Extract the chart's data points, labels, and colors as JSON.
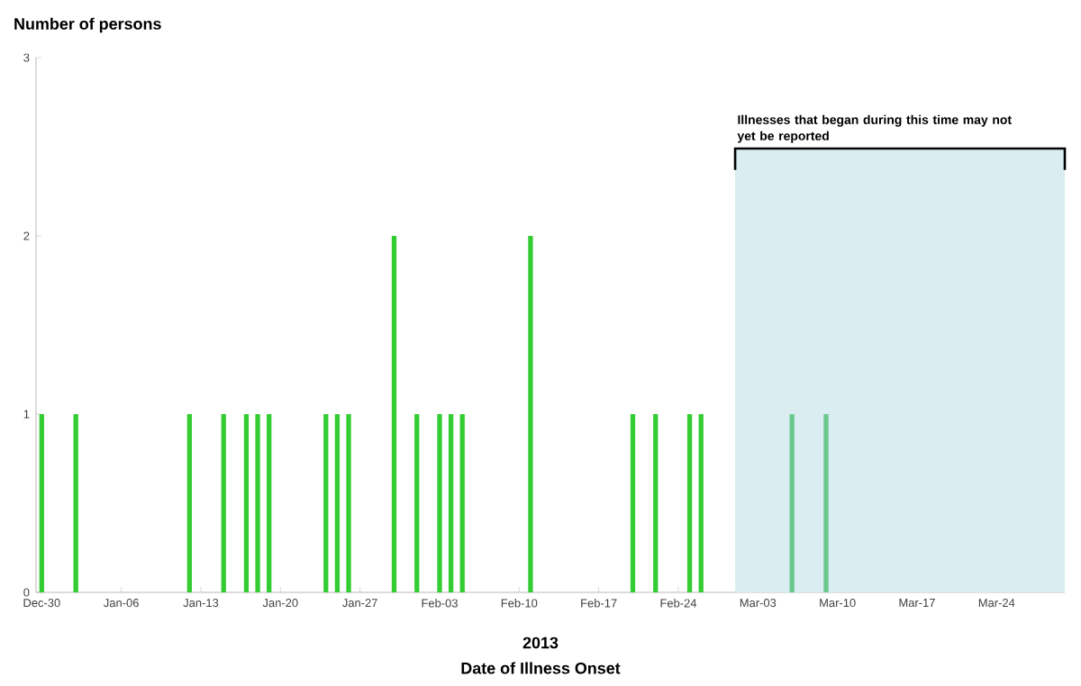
{
  "chart_data": {
    "type": "bar",
    "ylabel": "Number of persons",
    "xlabel": "Date of Illness Onset",
    "annotations": [
      "2013"
    ],
    "x": [
      "2012-12-30",
      "2013-01-02",
      "2013-01-12",
      "2013-01-15",
      "2013-01-17",
      "2013-01-18",
      "2013-01-19",
      "2013-01-24",
      "2013-01-25",
      "2013-01-26",
      "2013-01-30",
      "2013-02-01",
      "2013-02-03",
      "2013-02-04",
      "2013-02-05",
      "2013-02-11",
      "2013-02-20",
      "2013-02-22",
      "2013-02-25",
      "2013-02-26",
      "2013-03-06",
      "2013-03-09"
    ],
    "values": [
      1,
      1,
      1,
      1,
      1,
      1,
      1,
      1,
      1,
      1,
      2,
      1,
      1,
      1,
      1,
      2,
      1,
      1,
      1,
      1,
      1,
      1
    ],
    "colors": [
      "#33cc33",
      "#33cc33",
      "#33cc33",
      "#33cc33",
      "#33cc33",
      "#33cc33",
      "#33cc33",
      "#33cc33",
      "#33cc33",
      "#33cc33",
      "#33cc33",
      "#33cc33",
      "#33cc33",
      "#33cc33",
      "#33cc33",
      "#33cc33",
      "#33cc33",
      "#33cc33",
      "#33cc33",
      "#33cc33",
      "#6cc78f",
      "#6cc78f"
    ],
    "xlim": [
      "2012-12-29T12:00",
      "2013-03-30"
    ],
    "xticks": [
      {
        "value": "2012-12-30",
        "label": "Dec-30"
      },
      {
        "value": "2013-01-06",
        "label": "Jan-06"
      },
      {
        "value": "2013-01-13",
        "label": "Jan-13"
      },
      {
        "value": "2013-01-20",
        "label": "Jan-20"
      },
      {
        "value": "2013-01-27",
        "label": "Jan-27"
      },
      {
        "value": "2013-02-03",
        "label": "Feb-03"
      },
      {
        "value": "2013-02-10",
        "label": "Feb-10"
      },
      {
        "value": "2013-02-17",
        "label": "Feb-17"
      },
      {
        "value": "2013-02-24",
        "label": "Feb-24"
      },
      {
        "value": "2013-03-03",
        "label": "Mar-03"
      },
      {
        "value": "2013-03-10",
        "label": "Mar-10"
      },
      {
        "value": "2013-03-17",
        "label": "Mar-17"
      },
      {
        "value": "2013-03-24",
        "label": "Mar-24"
      }
    ],
    "ylim": [
      0,
      3
    ],
    "yticks": [
      0,
      1,
      2,
      3
    ],
    "bands": [
      {
        "axis": "x",
        "from": "2013-03-01",
        "to": "2013-03-30",
        "label": "Illnesses that began during this time may not yet be reported",
        "color": "#daeef1"
      }
    ]
  }
}
